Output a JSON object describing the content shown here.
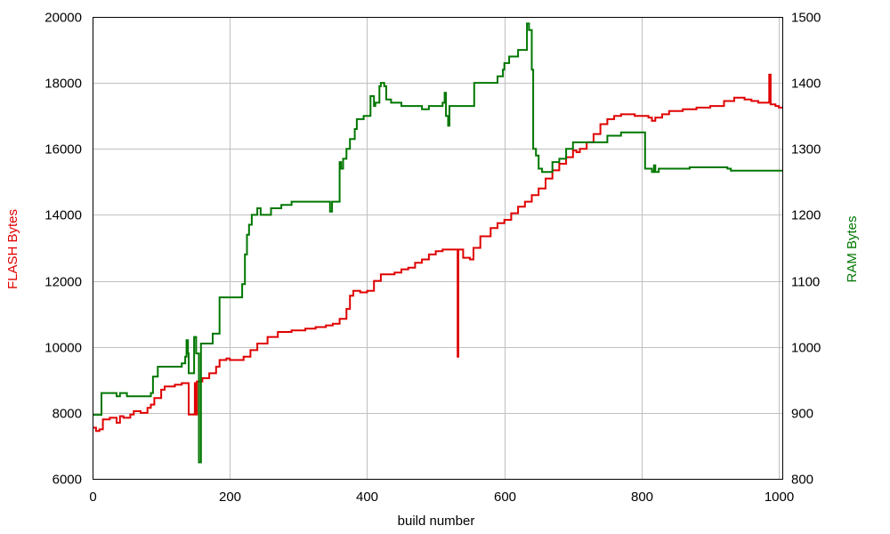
{
  "chart_data": {
    "type": "line",
    "title": "",
    "xlabel": "build number",
    "ylabel": "FLASH Bytes",
    "y2label": "RAM Bytes",
    "xlim": [
      0,
      1005
    ],
    "ylim": [
      6000,
      20000
    ],
    "y2lim": [
      800,
      1500
    ],
    "x_ticks": [
      "0",
      "200",
      "400",
      "600",
      "800",
      "1000"
    ],
    "y_ticks": [
      "6000",
      "8000",
      "10000",
      "12000",
      "14000",
      "16000",
      "18000",
      "20000"
    ],
    "y2_ticks": [
      "800",
      "900",
      "1000",
      "1100",
      "1200",
      "1300",
      "1400",
      "1500"
    ],
    "grid": true,
    "colors": {
      "flash": "#e00000",
      "ram": "#007700"
    },
    "series": [
      {
        "name": "FLASH Bytes",
        "axis": "left",
        "x": [
          0,
          5,
          10,
          15,
          25,
          35,
          40,
          45,
          55,
          60,
          70,
          80,
          85,
          90,
          95,
          100,
          105,
          110,
          120,
          130,
          138,
          140,
          148,
          149,
          150,
          152,
          160,
          170,
          180,
          185,
          195,
          200,
          210,
          220,
          230,
          240,
          255,
          270,
          290,
          310,
          325,
          340,
          350,
          360,
          370,
          375,
          380,
          390,
          400,
          410,
          420,
          430,
          440,
          450,
          460,
          470,
          480,
          490,
          500,
          510,
          525,
          530,
          532,
          533,
          535,
          540,
          550,
          555,
          565,
          580,
          590,
          600,
          610,
          620,
          630,
          640,
          650,
          660,
          670,
          680,
          690,
          700,
          705,
          710,
          720,
          730,
          740,
          750,
          760,
          770,
          780,
          790,
          800,
          810,
          815,
          820,
          830,
          840,
          860,
          880,
          900,
          920,
          935,
          950,
          960,
          970,
          980,
          985,
          986,
          988,
          990,
          995,
          1000,
          1005
        ],
        "y": [
          7550,
          7450,
          7500,
          7800,
          7850,
          7700,
          7900,
          7850,
          7950,
          8050,
          8000,
          8150,
          8250,
          8450,
          8450,
          8700,
          8800,
          8800,
          8850,
          8900,
          8900,
          7950,
          7950,
          8900,
          7950,
          8950,
          9050,
          9200,
          9400,
          9600,
          9650,
          9600,
          9600,
          9700,
          9900,
          10100,
          10300,
          10450,
          10500,
          10550,
          10600,
          10650,
          10700,
          10850,
          11150,
          11550,
          11700,
          11650,
          11700,
          12000,
          12200,
          12200,
          12250,
          12350,
          12400,
          12550,
          12650,
          12800,
          12900,
          12950,
          12950,
          12950,
          9700,
          12950,
          12950,
          12700,
          12650,
          13000,
          13350,
          13600,
          13750,
          13850,
          14050,
          14250,
          14400,
          14600,
          14800,
          15100,
          15350,
          15550,
          15750,
          15950,
          15900,
          16000,
          16200,
          16450,
          16750,
          16900,
          17000,
          17050,
          17050,
          17000,
          17000,
          16950,
          16850,
          16950,
          17050,
          17150,
          17200,
          17250,
          17300,
          17450,
          17550,
          17500,
          17450,
          17400,
          17400,
          17400,
          18250,
          17350,
          17350,
          17300,
          17250,
          17250
        ]
      },
      {
        "name": "RAM Bytes",
        "axis": "right",
        "x": [
          0,
          12,
          13,
          35,
          40,
          50,
          60,
          85,
          88,
          95,
          105,
          120,
          130,
          135,
          137,
          139,
          140,
          145,
          148,
          150,
          151,
          153,
          155,
          158,
          160,
          175,
          182,
          185,
          200,
          218,
          222,
          225,
          228,
          232,
          240,
          245,
          260,
          275,
          290,
          345,
          346,
          349,
          350,
          360,
          362,
          365,
          370,
          375,
          382,
          385,
          395,
          403,
          405,
          410,
          412,
          418,
          420,
          425,
          428,
          435,
          450,
          465,
          480,
          490,
          500,
          510,
          513,
          515,
          518,
          520,
          540,
          556,
          575,
          590,
          598,
          600,
          602,
          605,
          607,
          612,
          620,
          630,
          633,
          636,
          640,
          642,
          646,
          650,
          655,
          665,
          670,
          680,
          690,
          700,
          720,
          750,
          770,
          795,
          800,
          805,
          810,
          815,
          818,
          820,
          825,
          830,
          850,
          870,
          880,
          925,
          930,
          990,
          1005
        ],
        "y": [
          897,
          897,
          930,
          925,
          930,
          925,
          925,
          930,
          955,
          970,
          970,
          970,
          975,
          985,
          1010,
          990,
          960,
          960,
          1015,
          1015,
          990,
          990,
          825,
          1005,
          1005,
          1020,
          1020,
          1075,
          1075,
          1095,
          1140,
          1170,
          1185,
          1200,
          1210,
          1200,
          1210,
          1215,
          1220,
          1220,
          1205,
          1220,
          1220,
          1280,
          1270,
          1285,
          1300,
          1315,
          1330,
          1345,
          1350,
          1350,
          1380,
          1365,
          1370,
          1395,
          1400,
          1395,
          1375,
          1370,
          1365,
          1365,
          1360,
          1365,
          1365,
          1370,
          1385,
          1350,
          1335,
          1365,
          1365,
          1400,
          1400,
          1410,
          1420,
          1430,
          1430,
          1430,
          1440,
          1440,
          1450,
          1450,
          1490,
          1480,
          1420,
          1300,
          1290,
          1270,
          1265,
          1265,
          1280,
          1285,
          1300,
          1310,
          1310,
          1320,
          1325,
          1325,
          1325,
          1270,
          1270,
          1265,
          1275,
          1265,
          1270,
          1270,
          1270,
          1272,
          1272,
          1270,
          1267,
          1267,
          1267
        ]
      }
    ]
  }
}
